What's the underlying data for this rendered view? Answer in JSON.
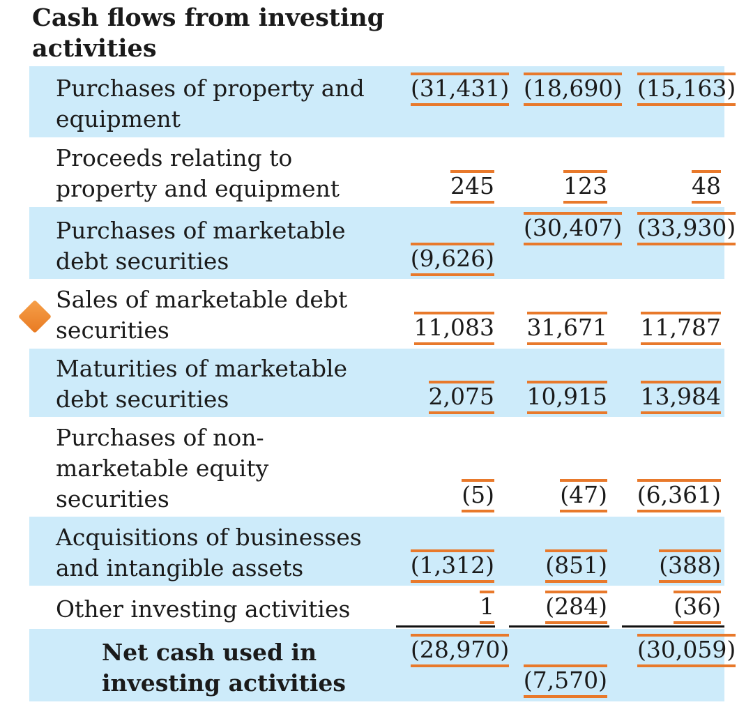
{
  "section_title": "Cash flows from investing activities",
  "rows": [
    {
      "label": "Purchases of property and equipment",
      "values": [
        "(31,431)",
        "(18,690)",
        "(15,163)"
      ]
    },
    {
      "label": "Proceeds relating to property and equipment",
      "values": [
        "245",
        "123",
        "48"
      ]
    },
    {
      "label": "Purchases of marketable debt securities",
      "values": [
        "(9,626)",
        "(30,407)",
        "(33,930)"
      ]
    },
    {
      "label": "Sales of marketable debt securities",
      "values": [
        "11,083",
        "31,671",
        "11,787"
      ]
    },
    {
      "label": "Maturities of marketable debt securities",
      "values": [
        "2,075",
        "10,915",
        "13,984"
      ]
    },
    {
      "label": "Purchases of non-marketable equity securities",
      "values": [
        "(5)",
        "(47)",
        "(6,361)"
      ]
    },
    {
      "label": "Acquisitions of businesses and intangible assets",
      "values": [
        "(1,312)",
        "(851)",
        "(388)"
      ]
    },
    {
      "label": "Other investing activities",
      "values": [
        "1",
        "(284)",
        "(36)"
      ]
    },
    {
      "label": "Net cash used in investing activities",
      "values": [
        "(28,970)",
        "(7,570)",
        "(30,059)"
      ]
    }
  ],
  "colors": {
    "row_shade": "#cdebfa",
    "highlight_mark": "#e8792b",
    "cursor_marker": "#f08a30"
  },
  "icons": {
    "cursor": "orange-diamond-icon"
  }
}
